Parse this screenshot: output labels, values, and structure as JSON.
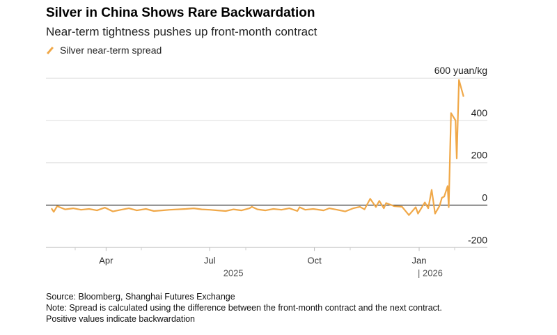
{
  "title": "Silver in China Shows Rare Backwardation",
  "subtitle": "Near-term tightness pushes up front-month contract",
  "notes": [
    "Source: Bloomberg, Shanghai Futures Exchange",
    "Note: Spread is calculated using the difference between the front-month contract and the next contract.",
    "Positive values indicate backwardation"
  ],
  "chart_data": {
    "type": "line",
    "title": "Silver in China Shows Rare Backwardation",
    "ylabel": "yuan/kg",
    "ylim": [
      -200,
      600
    ],
    "y_ticks": [
      "600 yuan/kg",
      "400",
      "200",
      "0",
      "-200"
    ],
    "y_tick_values": [
      600,
      400,
      200,
      0,
      -200
    ],
    "x_ticks": [
      {
        "label": "Apr",
        "date": "2025-04-01"
      },
      {
        "label": "Jul",
        "date": "2025-07-01"
      },
      {
        "label": "Oct",
        "date": "2025-10-01"
      },
      {
        "label": "Jan",
        "date": "2026-01-01"
      }
    ],
    "year_labels": [
      {
        "label": "2025",
        "date": "2025-07-01"
      },
      {
        "label": "| 2026",
        "date": "2026-01-01"
      }
    ],
    "grid": true,
    "legend_position": "top-left",
    "series": [
      {
        "name": "Silver near-term spread",
        "color": "#f0a848",
        "points": [
          [
            "2025-02-12",
            -15
          ],
          [
            "2025-02-14",
            -32
          ],
          [
            "2025-02-17",
            -5
          ],
          [
            "2025-02-24",
            -20
          ],
          [
            "2025-03-03",
            -15
          ],
          [
            "2025-03-10",
            -22
          ],
          [
            "2025-03-17",
            -18
          ],
          [
            "2025-03-24",
            -25
          ],
          [
            "2025-03-31",
            -12
          ],
          [
            "2025-04-07",
            -30
          ],
          [
            "2025-04-14",
            -22
          ],
          [
            "2025-04-21",
            -15
          ],
          [
            "2025-04-28",
            -25
          ],
          [
            "2025-05-06",
            -18
          ],
          [
            "2025-05-13",
            -28
          ],
          [
            "2025-05-20",
            -25
          ],
          [
            "2025-05-27",
            -22
          ],
          [
            "2025-06-03",
            -20
          ],
          [
            "2025-06-10",
            -18
          ],
          [
            "2025-06-17",
            -15
          ],
          [
            "2025-06-24",
            -20
          ],
          [
            "2025-07-01",
            -22
          ],
          [
            "2025-07-08",
            -25
          ],
          [
            "2025-07-15",
            -28
          ],
          [
            "2025-07-22",
            -20
          ],
          [
            "2025-07-29",
            -25
          ],
          [
            "2025-08-05",
            -15
          ],
          [
            "2025-08-07",
            -8
          ],
          [
            "2025-08-12",
            -20
          ],
          [
            "2025-08-19",
            -25
          ],
          [
            "2025-08-26",
            -18
          ],
          [
            "2025-09-02",
            -22
          ],
          [
            "2025-09-09",
            -15
          ],
          [
            "2025-09-16",
            -28
          ],
          [
            "2025-09-18",
            -10
          ],
          [
            "2025-09-23",
            -22
          ],
          [
            "2025-09-30",
            -18
          ],
          [
            "2025-10-09",
            -25
          ],
          [
            "2025-10-14",
            -15
          ],
          [
            "2025-10-21",
            -22
          ],
          [
            "2025-10-28",
            -30
          ],
          [
            "2025-11-04",
            -15
          ],
          [
            "2025-11-10",
            -8
          ],
          [
            "2025-11-14",
            -20
          ],
          [
            "2025-11-19",
            30
          ],
          [
            "2025-11-24",
            -9
          ],
          [
            "2025-11-27",
            20
          ],
          [
            "2025-12-01",
            -15
          ],
          [
            "2025-12-03",
            10
          ],
          [
            "2025-12-10",
            -5
          ],
          [
            "2025-12-17",
            -8
          ],
          [
            "2025-12-23",
            -47
          ],
          [
            "2025-12-29",
            -10
          ],
          [
            "2025-12-31",
            -40
          ],
          [
            "2026-01-06",
            13
          ],
          [
            "2026-01-09",
            -15
          ],
          [
            "2026-01-12",
            72
          ],
          [
            "2026-01-15",
            -40
          ],
          [
            "2026-01-19",
            -3
          ],
          [
            "2026-01-21",
            35
          ],
          [
            "2026-01-23",
            40
          ],
          [
            "2026-01-26",
            90
          ],
          [
            "2026-01-27",
            -10
          ],
          [
            "2026-01-29",
            435
          ],
          [
            "2026-02-02",
            400
          ],
          [
            "2026-02-03",
            221
          ],
          [
            "2026-02-05",
            592
          ],
          [
            "2026-02-09",
            513
          ]
        ]
      }
    ]
  }
}
